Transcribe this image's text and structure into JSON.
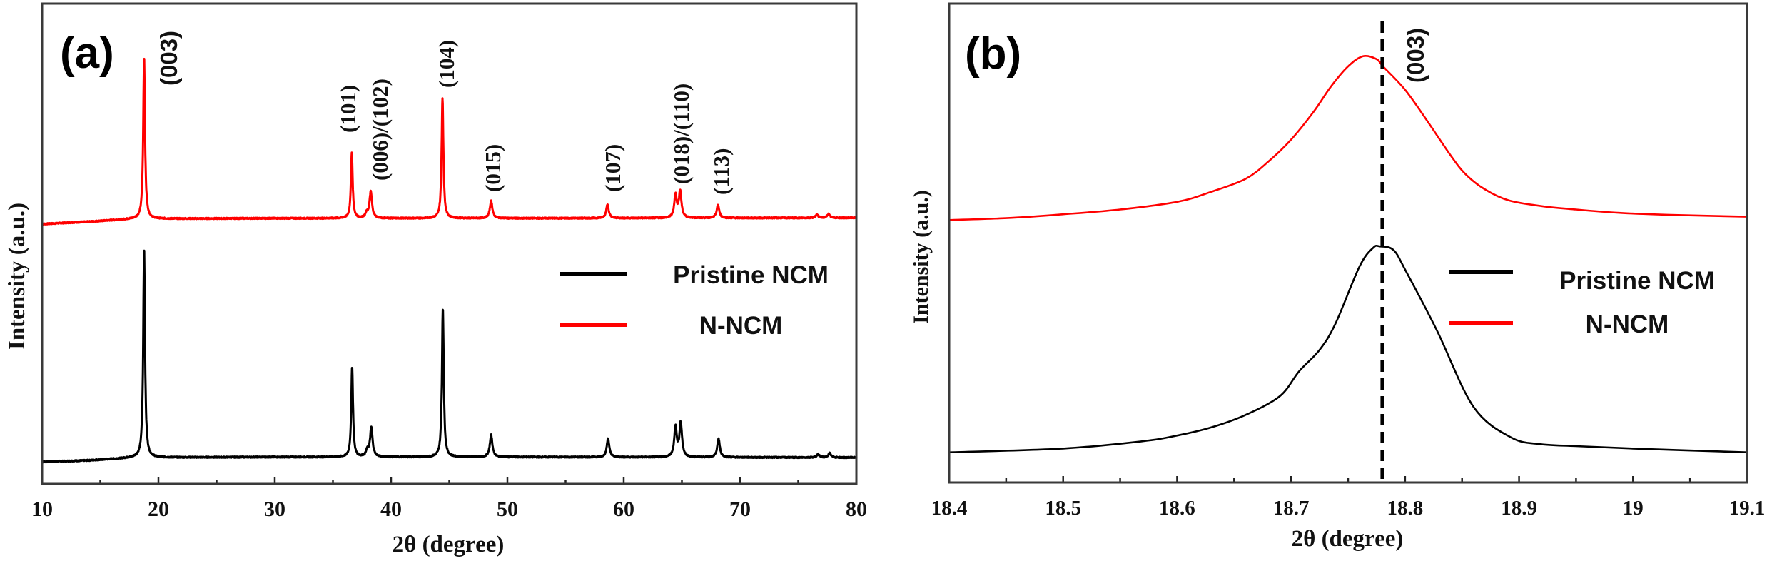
{
  "chart_data": [
    {
      "panel": "(a)",
      "type": "line",
      "title": "",
      "xlabel": "2θ (degree)",
      "ylabel": "Intensity (a.u.)",
      "xlim": [
        10,
        80
      ],
      "ylim": [
        0,
        100
      ],
      "xticks": [
        10,
        20,
        30,
        40,
        50,
        60,
        70,
        80
      ],
      "xtick_labels": [
        "10",
        "20",
        "30",
        "40",
        "50",
        "60",
        "70",
        "80"
      ],
      "minor_xtick_step": 5,
      "yticks": [],
      "grid": false,
      "legend": {
        "placement": "center-right",
        "entries": [
          {
            "label": "Pristine NCM",
            "color": "#000000"
          },
          {
            "label": "N-NCM",
            "color": "#ff0000"
          }
        ]
      },
      "series": [
        {
          "name": "N-NCM",
          "color": "#ff0000",
          "baseline": [
            [
              10,
              54.1
            ],
            [
              14,
              54.6
            ],
            [
              18,
              55.2
            ],
            [
              30,
              55.3
            ],
            [
              50,
              55.3
            ],
            [
              80,
              55.4
            ]
          ],
          "peaks": [
            {
              "x": 18.77,
              "height": 33.7
            },
            {
              "x": 36.62,
              "height": 13.6
            },
            {
              "x": 37.9,
              "height": 0.9
            },
            {
              "x": 38.25,
              "height": 5.5
            },
            {
              "x": 44.42,
              "height": 24.9
            },
            {
              "x": 48.6,
              "height": 3.6
            },
            {
              "x": 58.6,
              "height": 2.8
            },
            {
              "x": 64.45,
              "height": 4.7
            },
            {
              "x": 64.85,
              "height": 5.5
            },
            {
              "x": 68.1,
              "height": 2.7
            },
            {
              "x": 76.6,
              "height": 0.7
            },
            {
              "x": 77.6,
              "height": 0.8
            }
          ]
        },
        {
          "name": "Pristine NCM",
          "color": "#000000",
          "baseline": [
            [
              10,
              4.6
            ],
            [
              14,
              4.9
            ],
            [
              18,
              5.5
            ],
            [
              30,
              5.6
            ],
            [
              50,
              5.6
            ],
            [
              80,
              5.5
            ]
          ],
          "peaks": [
            {
              "x": 18.77,
              "height": 43.6
            },
            {
              "x": 36.65,
              "height": 18.7
            },
            {
              "x": 37.95,
              "height": 1.2
            },
            {
              "x": 38.3,
              "height": 6.1
            },
            {
              "x": 44.45,
              "height": 30.9
            },
            {
              "x": 48.6,
              "height": 4.6
            },
            {
              "x": 58.65,
              "height": 3.9
            },
            {
              "x": 64.45,
              "height": 6.2
            },
            {
              "x": 64.9,
              "height": 7.0
            },
            {
              "x": 68.15,
              "height": 3.9
            },
            {
              "x": 76.7,
              "height": 0.7
            },
            {
              "x": 77.7,
              "height": 0.9
            }
          ]
        }
      ],
      "annotations": [
        {
          "text": "(003)",
          "x": 18.77
        },
        {
          "text": "(101)",
          "x": 36.6
        },
        {
          "text": "(006)/(102)",
          "x": 38.3
        },
        {
          "text": "(104)",
          "x": 44.4
        },
        {
          "text": "(015)",
          "x": 48.6
        },
        {
          "text": "(107)",
          "x": 58.6
        },
        {
          "text": "(018)/(110)",
          "x": 64.6
        },
        {
          "text": "(113)",
          "x": 68.1
        }
      ]
    },
    {
      "panel": "(b)",
      "type": "line",
      "title": "",
      "xlabel": "2θ (degree)",
      "ylabel": "Intensity (a.u.)",
      "xlim": [
        18.4,
        19.1
      ],
      "ylim": [
        0,
        100
      ],
      "xticks": [
        18.4,
        18.5,
        18.6,
        18.7,
        18.8,
        18.9,
        19.0,
        19.1
      ],
      "xtick_labels": [
        "18.4",
        "18.5",
        "18.6",
        "18.7",
        "18.8",
        "18.9",
        "19",
        "19.1"
      ],
      "minor_xtick_step": 0.05,
      "yticks": [],
      "grid": false,
      "legend": {
        "placement": "center-right",
        "entries": [
          {
            "label": "Pristine NCM",
            "color": "#000000"
          },
          {
            "label": "N-NCM",
            "color": "#ff0000"
          }
        ]
      },
      "reference_line": {
        "x": 18.78,
        "style": "dashed",
        "label": "(003)"
      },
      "series": [
        {
          "name": "N-NCM",
          "color": "#ff0000",
          "x": [
            18.4,
            18.45,
            18.5,
            18.55,
            18.6,
            18.63,
            18.66,
            18.68,
            18.7,
            18.72,
            18.735,
            18.75,
            18.763,
            18.775,
            18.781,
            18.8,
            18.82,
            18.84,
            18.853,
            18.87,
            18.891,
            18.92,
            18.95,
            18.988,
            19.03,
            19.1
          ],
          "y": [
            54.8,
            55.2,
            56.0,
            57.0,
            58.6,
            60.7,
            63.4,
            67.0,
            71.6,
            77.5,
            82.7,
            86.9,
            89.0,
            88.4,
            86.8,
            82.0,
            75.3,
            68.3,
            64.4,
            61.2,
            58.9,
            57.7,
            57.0,
            56.3,
            55.9,
            55.5
          ]
        },
        {
          "name": "Pristine NCM",
          "color": "#000000",
          "x": [
            18.4,
            18.5,
            18.569,
            18.6,
            18.63,
            18.659,
            18.69,
            18.707,
            18.725,
            18.739,
            18.76,
            18.772,
            18.778,
            18.79,
            18.801,
            18.828,
            18.86,
            18.893,
            18.919,
            18.95,
            19.0,
            19.1
          ],
          "y": [
            6.3,
            7.1,
            8.6,
            9.8,
            11.5,
            14.0,
            18.0,
            23.2,
            27.7,
            33.2,
            45.1,
            49.0,
            49.3,
            48.5,
            44.0,
            31.7,
            15.8,
            9.4,
            8.0,
            7.6,
            7.1,
            6.3
          ]
        }
      ]
    }
  ]
}
